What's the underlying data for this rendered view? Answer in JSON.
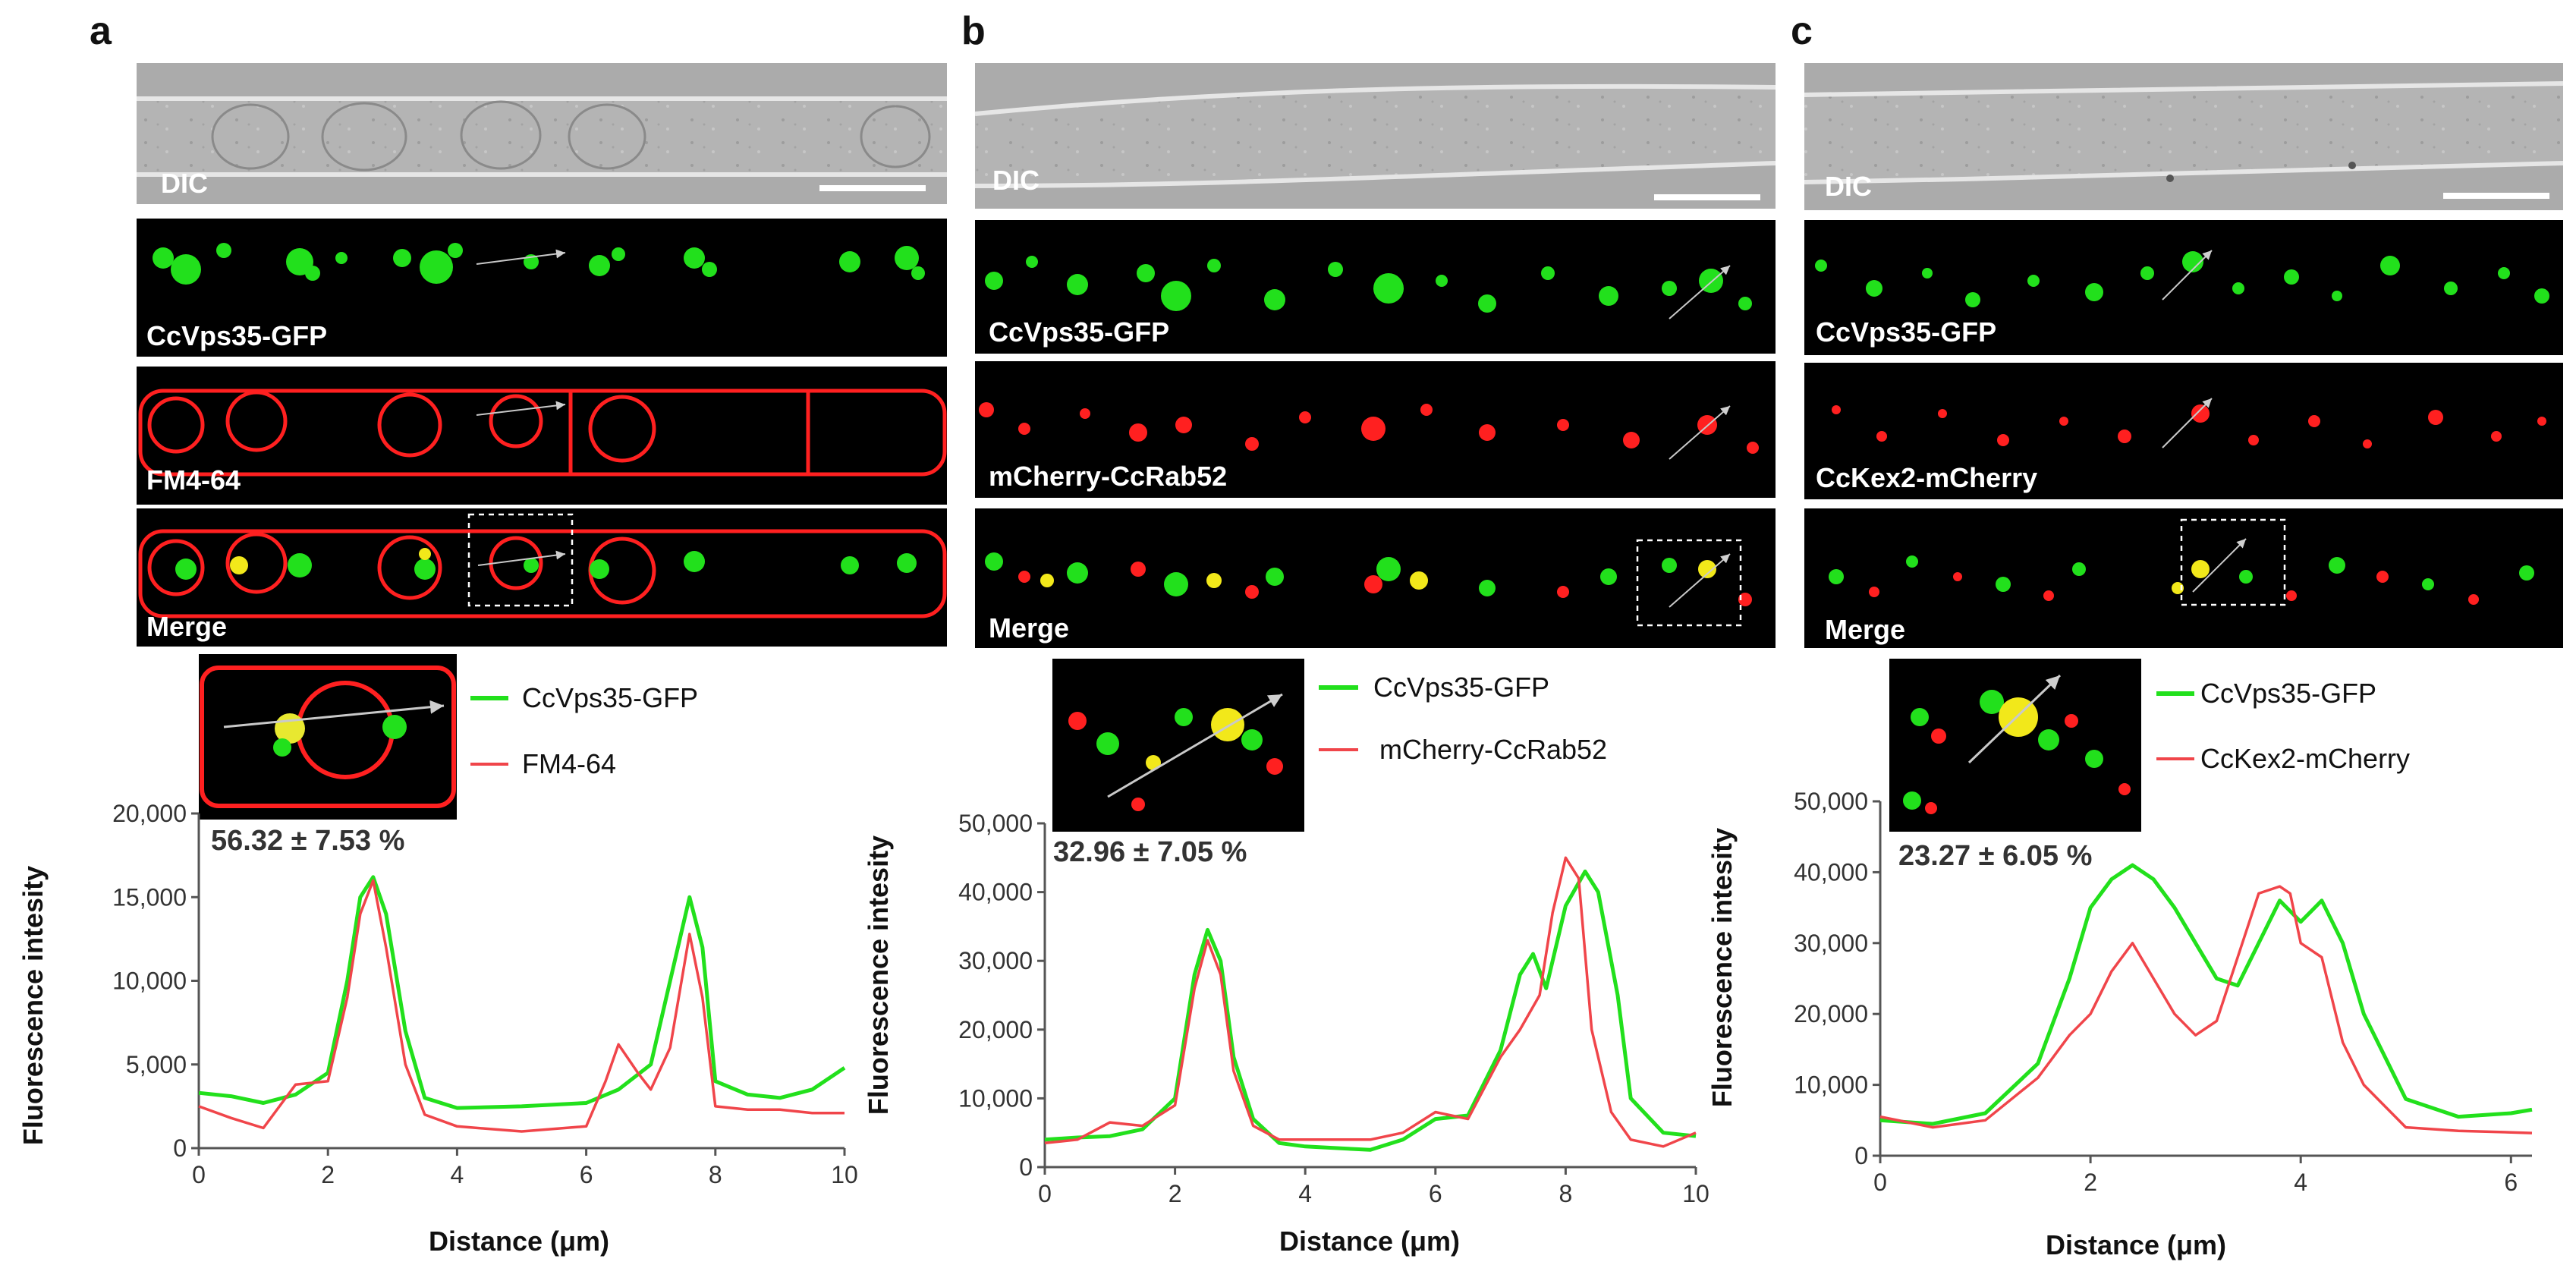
{
  "colors": {
    "green": "#22e01c",
    "red": "#f0454a",
    "axis": "#555555",
    "dic_bg": "#a9a9a9"
  },
  "panels": [
    {
      "letter": "a",
      "dic_label": "DIC",
      "channels": [
        "CcVps35-GFP",
        "FM4-64",
        "Merge"
      ],
      "legend": [
        "CcVps35-GFP",
        "FM4-64"
      ],
      "percentage": "56.32 ± 7.53 %",
      "ylabel": "Fluorescence intesity",
      "xlabel": "Distance (μm)",
      "yticks": [
        "0",
        "5,000",
        "10,000",
        "15,000",
        "20,000"
      ],
      "xticks": [
        "0",
        "2",
        "4",
        "6",
        "8",
        "10"
      ]
    },
    {
      "letter": "b",
      "dic_label": "DIC",
      "channels": [
        "CcVps35-GFP",
        "mCherry-CcRab52",
        "Merge"
      ],
      "legend": [
        "CcVps35-GFP",
        "mCherry-CcRab52"
      ],
      "percentage": "32.96 ± 7.05 %",
      "ylabel": "Fluorescence intesity",
      "xlabel": "Distance (μm)",
      "yticks": [
        "0",
        "10,000",
        "20,000",
        "30,000",
        "40,000",
        "50,000"
      ],
      "xticks": [
        "0",
        "2",
        "4",
        "6",
        "8",
        "10"
      ]
    },
    {
      "letter": "c",
      "dic_label": "DIC",
      "channels": [
        "CcVps35-GFP",
        "CcKex2-mCherry",
        "Merge"
      ],
      "legend": [
        "CcVps35-GFP",
        "CcKex2-mCherry"
      ],
      "percentage": "23.27 ± 6.05 %",
      "ylabel": "Fluorescence intesity",
      "xlabel": "Distance (μm)",
      "yticks": [
        "0",
        "10,000",
        "20,000",
        "30,000",
        "40,000",
        "50,000"
      ],
      "xticks": [
        "0",
        "2",
        "4",
        "6"
      ]
    }
  ],
  "chart_data": [
    {
      "type": "line",
      "title": "a",
      "xlabel": "Distance (μm)",
      "ylabel": "Fluorescence intesity",
      "xlim": [
        0,
        10
      ],
      "ylim": [
        0,
        20000
      ],
      "series": [
        {
          "name": "CcVps35-GFP",
          "color": "#22e01c",
          "x": [
            0,
            0.5,
            1,
            1.5,
            2,
            2.3,
            2.5,
            2.7,
            2.9,
            3.2,
            3.5,
            4,
            5,
            6,
            6.5,
            7,
            7.3,
            7.6,
            7.8,
            8,
            8.5,
            9,
            9.5,
            10
          ],
          "y": [
            3300,
            3100,
            2700,
            3200,
            4500,
            10000,
            15000,
            16200,
            14000,
            7000,
            3000,
            2400,
            2500,
            2700,
            3500,
            5000,
            10000,
            15000,
            12000,
            4000,
            3200,
            3000,
            3500,
            4800
          ]
        },
        {
          "name": "FM4-64",
          "color": "#f0454a",
          "x": [
            0,
            0.5,
            1,
            1.5,
            2,
            2.3,
            2.5,
            2.7,
            2.9,
            3.2,
            3.5,
            4,
            5,
            6,
            6.3,
            6.5,
            6.8,
            7,
            7.3,
            7.6,
            7.8,
            8,
            8.5,
            9,
            9.5,
            10
          ],
          "y": [
            2500,
            1800,
            1200,
            3800,
            4000,
            9000,
            14000,
            16000,
            12000,
            5000,
            2000,
            1300,
            1000,
            1300,
            4000,
            6200,
            4500,
            3500,
            6000,
            12800,
            9000,
            2500,
            2300,
            2300,
            2100,
            2100
          ]
        }
      ]
    },
    {
      "type": "line",
      "title": "b",
      "xlabel": "Distance (μm)",
      "ylabel": "Fluorescence intesity",
      "xlim": [
        0,
        10
      ],
      "ylim": [
        0,
        50000
      ],
      "series": [
        {
          "name": "CcVps35-GFP",
          "color": "#22e01c",
          "x": [
            0,
            0.5,
            1,
            1.5,
            2,
            2.3,
            2.5,
            2.7,
            2.9,
            3.2,
            3.6,
            4,
            5,
            5.5,
            6,
            6.5,
            7,
            7.3,
            7.5,
            7.7,
            8,
            8.3,
            8.5,
            8.8,
            9,
            9.5,
            10
          ],
          "y": [
            4000,
            4300,
            4500,
            5500,
            10000,
            28000,
            34500,
            30000,
            16000,
            7000,
            3500,
            3000,
            2500,
            4000,
            7000,
            7500,
            17000,
            28000,
            31000,
            26000,
            38000,
            43000,
            40000,
            25000,
            10000,
            5000,
            4500
          ]
        },
        {
          "name": "mCherry-CcRab52",
          "color": "#f0454a",
          "x": [
            0,
            0.5,
            1,
            1.5,
            2,
            2.3,
            2.5,
            2.7,
            2.9,
            3.2,
            3.6,
            4,
            5,
            5.5,
            6,
            6.5,
            7,
            7.3,
            7.6,
            7.8,
            8,
            8.2,
            8.4,
            8.7,
            9,
            9.5,
            10
          ],
          "y": [
            3500,
            4000,
            6500,
            6000,
            9000,
            26000,
            33000,
            28000,
            14000,
            6000,
            4000,
            4000,
            4000,
            5000,
            8000,
            7000,
            16000,
            20000,
            25000,
            37000,
            45000,
            42000,
            20000,
            8000,
            4000,
            3000,
            5000
          ]
        }
      ]
    },
    {
      "type": "line",
      "title": "c",
      "xlabel": "Distance (μm)",
      "ylabel": "Fluorescence intesity",
      "xlim": [
        0,
        6.2
      ],
      "ylim": [
        0,
        50000
      ],
      "series": [
        {
          "name": "CcVps35-GFP",
          "color": "#22e01c",
          "x": [
            0,
            0.5,
            1,
            1.5,
            1.8,
            2,
            2.2,
            2.4,
            2.6,
            2.8,
            3,
            3.2,
            3.4,
            3.6,
            3.8,
            4,
            4.2,
            4.4,
            4.6,
            5,
            5.5,
            6,
            6.2
          ],
          "y": [
            5000,
            4500,
            6000,
            13000,
            25000,
            35000,
            39000,
            41000,
            39000,
            35000,
            30000,
            25000,
            24000,
            30000,
            36000,
            33000,
            36000,
            30000,
            20000,
            8000,
            5500,
            6000,
            6500
          ]
        },
        {
          "name": "CcKex2-mCherry",
          "color": "#f0454a",
          "x": [
            0,
            0.5,
            1,
            1.5,
            1.8,
            2,
            2.2,
            2.4,
            2.6,
            2.8,
            3,
            3.2,
            3.4,
            3.6,
            3.8,
            3.9,
            4,
            4.2,
            4.4,
            4.6,
            5,
            5.5,
            6,
            6.2
          ],
          "y": [
            5500,
            4000,
            5000,
            11000,
            17000,
            20000,
            26000,
            30000,
            25000,
            20000,
            17000,
            19000,
            28000,
            37000,
            38000,
            37000,
            30000,
            28000,
            16000,
            10000,
            4000,
            3500,
            3300,
            3200
          ]
        }
      ]
    }
  ]
}
